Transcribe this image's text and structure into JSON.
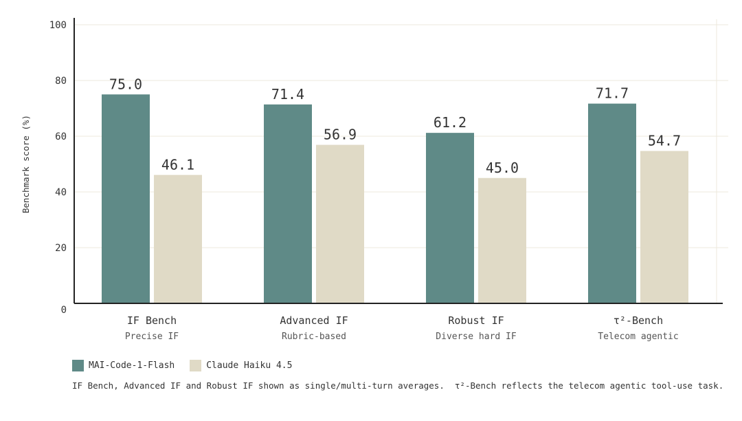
{
  "colors": {
    "series_1": "#5f8a87",
    "series_2": "#e0dac6",
    "grid": "#ece8dc",
    "axis": "#222222",
    "text": "#333333"
  },
  "chart_data": {
    "type": "bar",
    "ylabel": "Benchmark score (%)",
    "ylim": [
      0,
      100
    ],
    "yticks": [
      0,
      20,
      40,
      60,
      80,
      100
    ],
    "grid": true,
    "legend_position": "bottom-left",
    "categories": [
      {
        "label": "IF Bench",
        "sublabel": "Precise IF"
      },
      {
        "label": "Advanced IF",
        "sublabel": "Rubric-based"
      },
      {
        "label": "Robust IF",
        "sublabel": "Diverse hard IF"
      },
      {
        "label": "τ²-Bench",
        "sublabel": "Telecom agentic"
      }
    ],
    "series": [
      {
        "name": "MAI-Code-1-Flash",
        "values": [
          75.0,
          71.4,
          61.2,
          71.7
        ],
        "labels": [
          "75.0",
          "71.4",
          "61.2",
          "71.7"
        ]
      },
      {
        "name": "Claude Haiku 4.5",
        "values": [
          46.1,
          56.9,
          45.0,
          54.7
        ],
        "labels": [
          "46.1",
          "56.9",
          "45.0",
          "54.7"
        ]
      }
    ]
  },
  "footnote": "IF Bench, Advanced IF and Robust IF shown as single/multi-turn averages.  τ²-Bench reflects the telecom agentic tool-use task."
}
